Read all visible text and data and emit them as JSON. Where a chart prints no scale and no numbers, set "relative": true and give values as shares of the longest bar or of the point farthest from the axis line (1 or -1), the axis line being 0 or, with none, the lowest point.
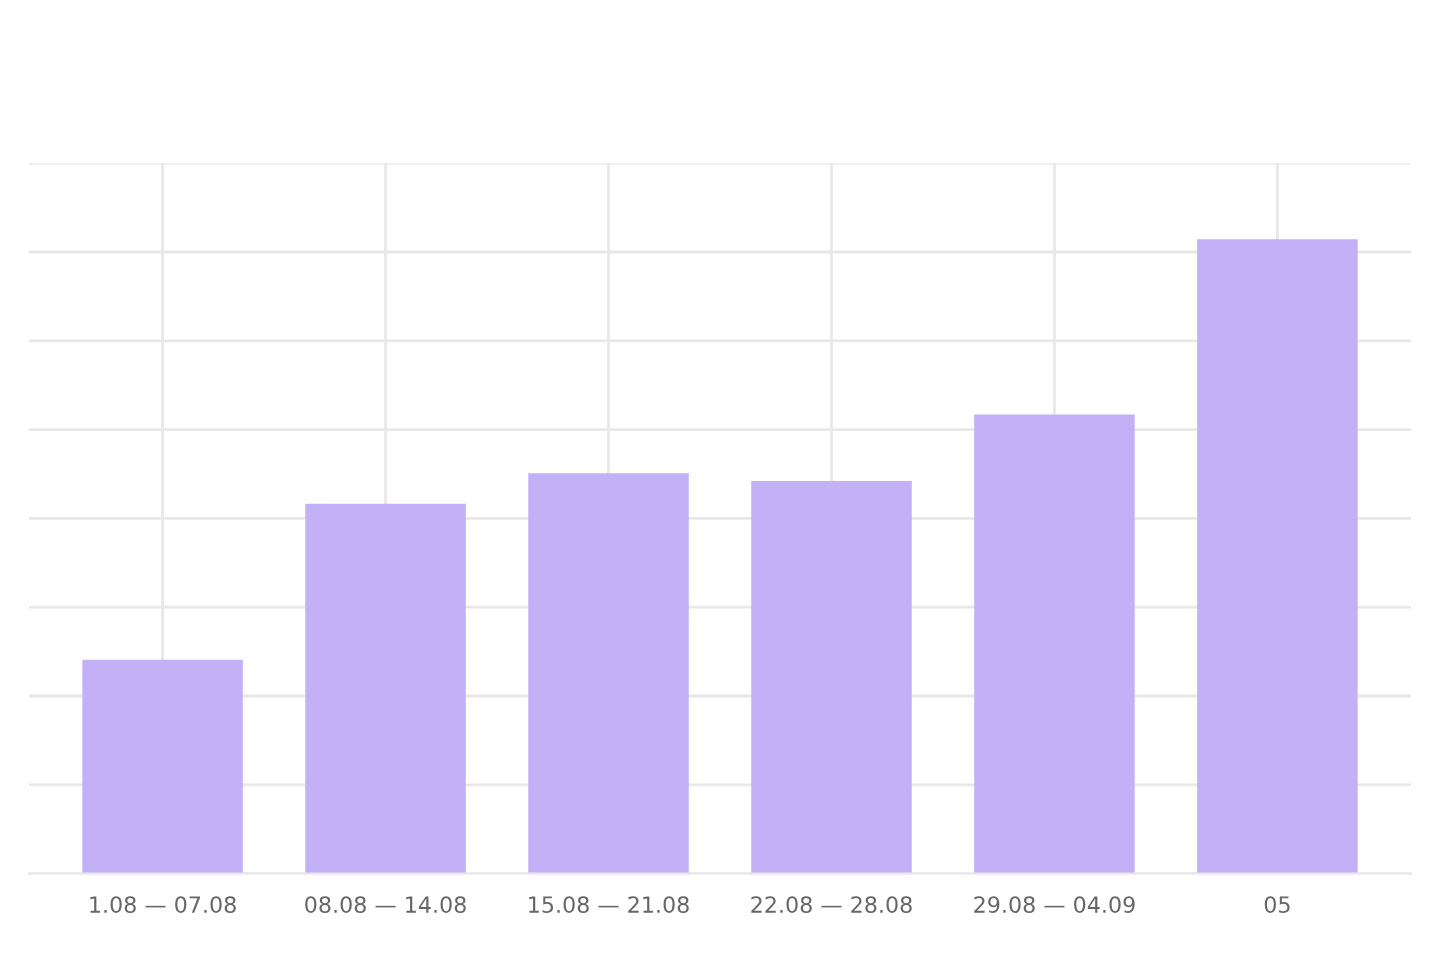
{
  "chart_data": {
    "type": "bar",
    "relative": true,
    "grid": true,
    "color": "#c3b1f7",
    "categories": [
      "1.08 — 07.08",
      "08.08 — 14.08",
      "15.08 — 21.08",
      "22.08 — 28.08",
      "29.08 — 04.09",
      "05"
    ],
    "values": [
      0.337,
      0.583,
      0.631,
      0.619,
      0.724,
      1
    ]
  }
}
